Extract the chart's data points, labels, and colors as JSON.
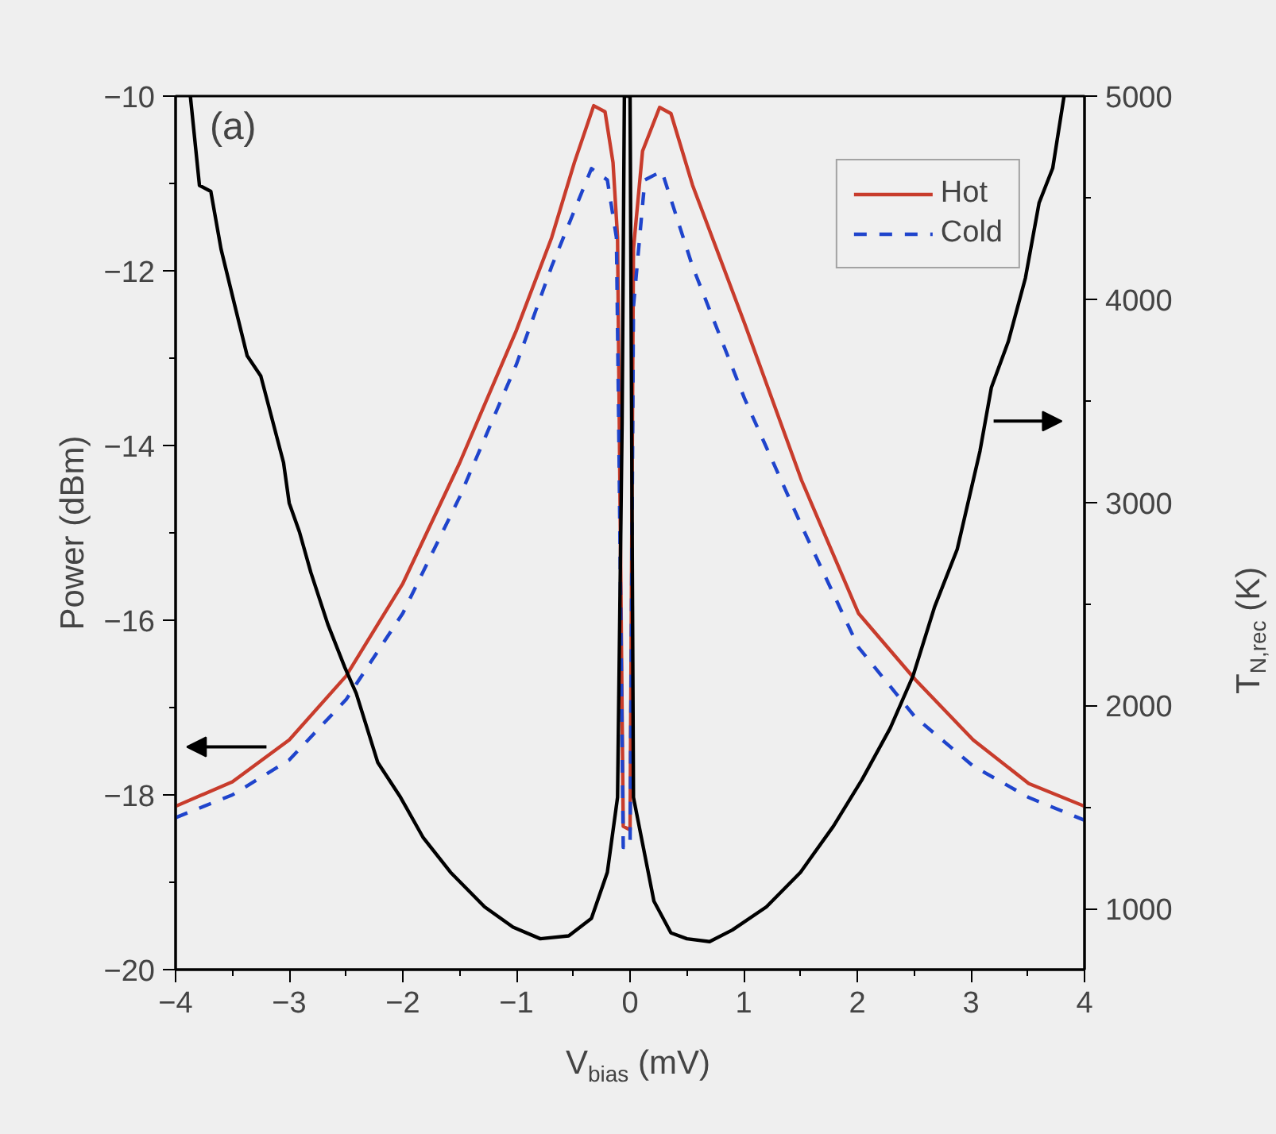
{
  "chart_data": {
    "type": "line",
    "xlabel": "V$_{bias}$ (mV)",
    "ylabel": "Power (dBm)",
    "y2label": "T$_{N,rec}$ (K)",
    "annotations": [
      "(a)"
    ],
    "xlim": [
      -4,
      4
    ],
    "xticks": [
      -4,
      -3,
      -2,
      -1,
      0,
      1,
      2,
      3,
      4
    ],
    "ylim": [
      -20,
      -10
    ],
    "yticks": [
      -20,
      -18,
      -16,
      -14,
      -12,
      -10
    ],
    "y2lim": [
      700,
      5000
    ],
    "y2ticks": [
      1000,
      2000,
      3000,
      4000,
      5000
    ],
    "grid": false,
    "legend": "top right",
    "series": [
      {
        "name": "Hot",
        "color": "#c83c2c",
        "line_style": "solid",
        "x": [
          -4,
          -3.5,
          -3.0,
          -2.5,
          -2.0,
          -1.5,
          -1.0,
          -0.69,
          -0.49,
          -0.32,
          -0.22,
          -0.15,
          -0.11,
          -0.09,
          -0.06,
          0,
          0.03,
          0.11,
          0.26,
          0.36,
          0.55,
          1.01,
          1.51,
          2.01,
          2.51,
          3.02,
          3.51,
          4.0
        ],
        "values": [
          -18.13,
          -17.85,
          -17.37,
          -16.64,
          -15.58,
          -14.2,
          -12.68,
          -11.62,
          -10.76,
          -10.11,
          -10.18,
          -10.76,
          -11.62,
          -14.4,
          -18.36,
          -18.4,
          -11.75,
          -10.63,
          -10.13,
          -10.2,
          -11.02,
          -12.61,
          -14.4,
          -15.92,
          -16.68,
          -17.37,
          -17.87,
          -18.13
        ]
      },
      {
        "name": "Cold",
        "color": "#1f44cc",
        "line_style": "dashed",
        "x": [
          -4,
          -3.5,
          -3.0,
          -2.5,
          -2.0,
          -1.5,
          -1.0,
          -0.69,
          -0.34,
          -0.2,
          -0.12,
          -0.1,
          -0.06,
          0,
          0.03,
          0.13,
          0.28,
          0.55,
          1.01,
          1.51,
          2.01,
          2.51,
          3.02,
          3.51,
          4.0
        ],
        "values": [
          -18.26,
          -18.0,
          -17.6,
          -16.91,
          -15.92,
          -14.59,
          -13.07,
          -11.95,
          -10.83,
          -10.96,
          -11.62,
          -13.73,
          -18.6,
          -18.6,
          -12.41,
          -10.96,
          -10.86,
          -11.95,
          -13.47,
          -14.92,
          -16.31,
          -17.11,
          -17.67,
          -18.03,
          -18.29
        ]
      },
      {
        "color": "#000000",
        "axis": "y2",
        "line_style": "solid",
        "x": [
          -3.87,
          -3.79,
          -3.69,
          -3.6,
          -3.47,
          -3.37,
          -3.25,
          -3.05,
          -3.0,
          -2.91,
          -2.81,
          -2.66,
          -2.51,
          -2.41,
          -2.22,
          -2.02,
          -1.82,
          -1.58,
          -1.28,
          -1.03,
          -0.79,
          -0.54,
          -0.34,
          -0.2,
          -0.11,
          -0.07,
          -0.05,
          0,
          0.03,
          0.11,
          0.21,
          0.36,
          0.5,
          0.7,
          0.9,
          1.2,
          1.5,
          1.79,
          2.04,
          2.29,
          2.49,
          2.68,
          2.88,
          3.08,
          3.18,
          3.33,
          3.48,
          3.6,
          3.72,
          3.82
        ],
        "values": [
          5000,
          4560,
          4531,
          4247,
          3949,
          3722,
          3622,
          3196,
          2997,
          2855,
          2656,
          2400,
          2187,
          2060,
          1719,
          1548,
          1349,
          1179,
          1009,
          909,
          852,
          866,
          952,
          1179,
          1548,
          3395,
          5000,
          5000,
          1548,
          1321,
          1037,
          881,
          852,
          838,
          895,
          1009,
          1179,
          1406,
          1634,
          1889,
          2145,
          2485,
          2770,
          3253,
          3565,
          3793,
          4105,
          4474,
          4645,
          5000
        ]
      }
    ]
  }
}
